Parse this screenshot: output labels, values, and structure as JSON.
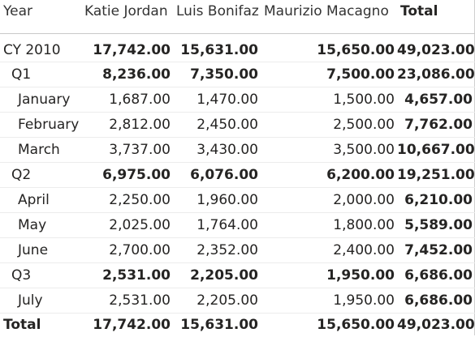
{
  "header": {
    "row_label": "Year",
    "columns": [
      "Katie Jordan",
      "Luis Bonifaz",
      "Maurizio Macagno"
    ],
    "total_label": "Total"
  },
  "rows": [
    {
      "label": "CY 2010",
      "level": 0,
      "bold": true,
      "values": [
        "17,742.00",
        "15,631.00",
        "15,650.00"
      ],
      "total": "49,023.00"
    },
    {
      "label": "Q1",
      "level": 1,
      "bold": true,
      "values": [
        "8,236.00",
        "7,350.00",
        "7,500.00"
      ],
      "total": "23,086.00"
    },
    {
      "label": "January",
      "level": 2,
      "bold": false,
      "values": [
        "1,687.00",
        "1,470.00",
        "1,500.00"
      ],
      "total": "4,657.00"
    },
    {
      "label": "February",
      "level": 2,
      "bold": false,
      "values": [
        "2,812.00",
        "2,450.00",
        "2,500.00"
      ],
      "total": "7,762.00"
    },
    {
      "label": "March",
      "level": 2,
      "bold": false,
      "values": [
        "3,737.00",
        "3,430.00",
        "3,500.00"
      ],
      "total": "10,667.00"
    },
    {
      "label": "Q2",
      "level": 1,
      "bold": true,
      "values": [
        "6,975.00",
        "6,076.00",
        "6,200.00"
      ],
      "total": "19,251.00"
    },
    {
      "label": "April",
      "level": 2,
      "bold": false,
      "values": [
        "2,250.00",
        "1,960.00",
        "2,000.00"
      ],
      "total": "6,210.00"
    },
    {
      "label": "May",
      "level": 2,
      "bold": false,
      "values": [
        "2,025.00",
        "1,764.00",
        "1,800.00"
      ],
      "total": "5,589.00"
    },
    {
      "label": "June",
      "level": 2,
      "bold": false,
      "values": [
        "2,700.00",
        "2,352.00",
        "2,400.00"
      ],
      "total": "7,452.00"
    },
    {
      "label": "Q3",
      "level": 1,
      "bold": true,
      "values": [
        "2,531.00",
        "2,205.00",
        "1,950.00"
      ],
      "total": "6,686.00"
    },
    {
      "label": "July",
      "level": 2,
      "bold": false,
      "values": [
        "2,531.00",
        "2,205.00",
        "1,950.00"
      ],
      "total": "6,686.00"
    }
  ],
  "footer": {
    "label": "Total",
    "values": [
      "17,742.00",
      "15,631.00",
      "15,650.00"
    ],
    "total": "49,023.00"
  }
}
